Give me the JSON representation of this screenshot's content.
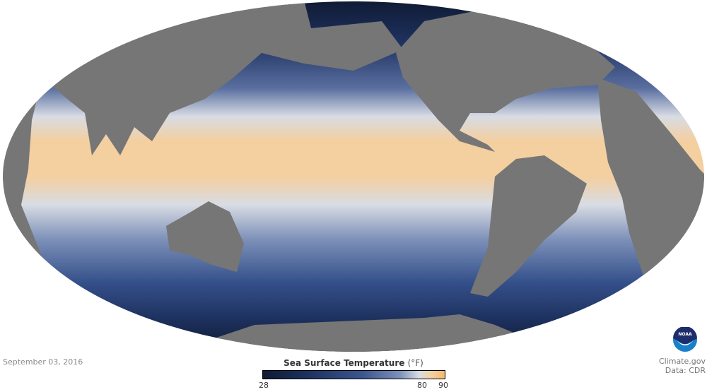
{
  "map": {
    "projection": "mollweide",
    "center": "pacific",
    "ocean_colors": {
      "cold": "#0f1a33",
      "mid": "#3b5690",
      "neutral": "#d8dce4",
      "warm": "#f8b86e"
    },
    "land_color": "#767676"
  },
  "date": "September 03, 2016",
  "legend": {
    "title": "Sea Surface Temperature",
    "unit": "(°F)",
    "min": "28",
    "mid": "80",
    "max": "90"
  },
  "credit": {
    "logo": "NOAA",
    "site": "Climate.gov",
    "data": "Data: CDR"
  }
}
